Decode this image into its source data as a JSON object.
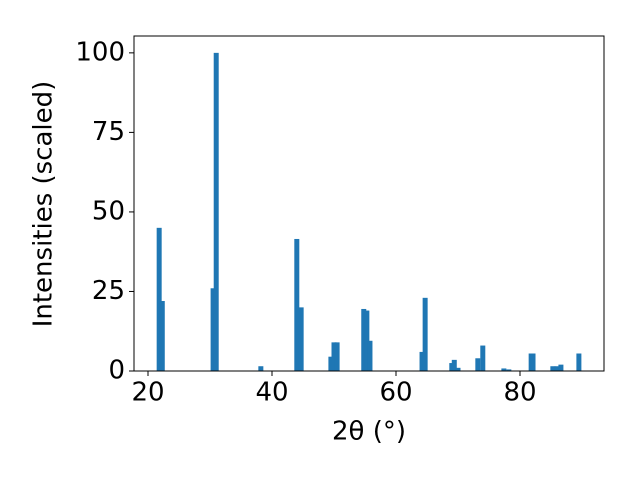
{
  "chart_data": {
    "type": "bar",
    "x_label": "2θ (°)",
    "y_label": "Intensities (scaled)",
    "x": [
      21.8,
      22.3,
      30.5,
      31.0,
      38.2,
      44.0,
      44.7,
      49.5,
      50.0,
      50.5,
      54.8,
      55.3,
      55.8,
      64.2,
      64.7,
      69.0,
      69.4,
      70.0,
      73.2,
      74.0,
      77.4,
      78.2,
      81.8,
      82.1,
      85.3,
      86.0,
      86.6,
      89.5
    ],
    "values": [
      45,
      22,
      26,
      100,
      1.5,
      41.5,
      20,
      4.5,
      9,
      9,
      19.5,
      19,
      9.5,
      6,
      23,
      2.5,
      3.5,
      1,
      4,
      8,
      0.8,
      0.5,
      5.5,
      5.5,
      1.5,
      1.5,
      2,
      5.5
    ],
    "color": "#1f77b4",
    "xlim": [
      17.74,
      93.55
    ],
    "ylim": [
      0,
      105.3
    ],
    "xticks": [
      20,
      40,
      60,
      80
    ],
    "yticks": [
      0,
      25,
      50,
      75,
      100
    ]
  }
}
